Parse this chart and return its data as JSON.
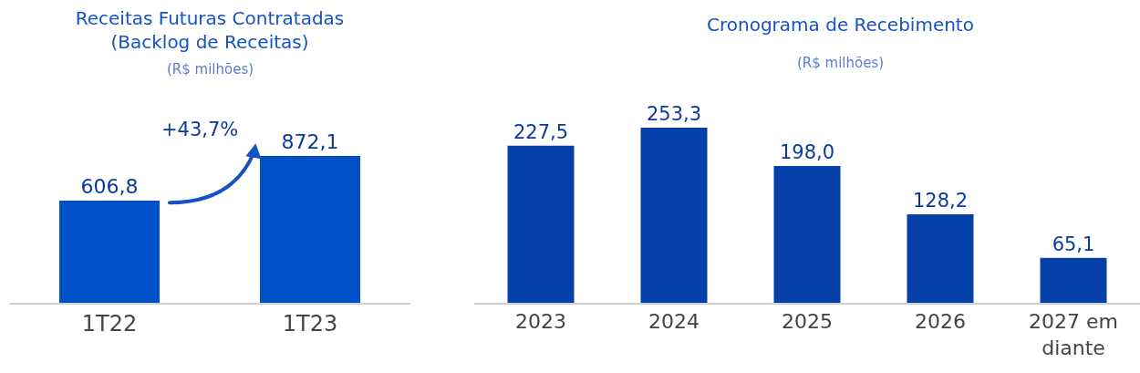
{
  "chart_data": [
    {
      "type": "bar",
      "title": "Receitas Futuras Contratadas\n(Backlog de Receitas)",
      "subtitle": "(R$ milhões)",
      "categories": [
        "1T22",
        "1T23"
      ],
      "values": [
        606.8,
        872.1
      ],
      "value_labels": [
        "606,8",
        "872,1"
      ],
      "color": "#0050c8",
      "annotations": [
        "+43,7%"
      ],
      "grid": false
    },
    {
      "type": "bar",
      "title": "Cronograma de Recebimento",
      "subtitle": "(R$ milhões)",
      "categories": [
        "2023",
        "2024",
        "2025",
        "2026",
        "2027 em\ndiante"
      ],
      "values": [
        227.5,
        253.3,
        198.0,
        128.2,
        65.1
      ],
      "value_labels": [
        "227,5",
        "253,3",
        "198,0",
        "128,2",
        "65,1"
      ],
      "color": "#0540a8",
      "grid": false
    }
  ]
}
